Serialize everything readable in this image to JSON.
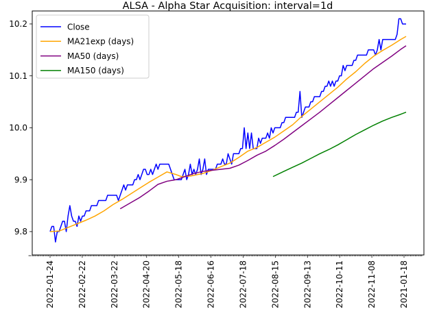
{
  "chart_data": {
    "type": "line",
    "title": "ALSA - Alpha Star Acquisition: interval=1d",
    "xlabel": "",
    "ylabel": "",
    "x_tick_labels": [
      "2022-01-24",
      "2022-02-22",
      "2022-03-22",
      "2022-04-20",
      "2022-05-18",
      "2022-06-16",
      "2022-07-18",
      "2022-08-15",
      "2022-09-13",
      "2022-10-11",
      "2022-11-08",
      "2021-01-18"
    ],
    "y_ticks": [
      9.8,
      9.9,
      10.0,
      10.1,
      10.2
    ],
    "y_tick_labels": [
      "9.8",
      "9.9",
      "10.0",
      "10.1",
      "10.2"
    ],
    "ylim": [
      9.755,
      10.225
    ],
    "grid": false,
    "legend_position": "upper left",
    "series": [
      {
        "name": "Close",
        "color": "#0000ff",
        "points": [
          [
            0,
            9.8
          ],
          [
            1,
            9.81
          ],
          [
            2,
            9.81
          ],
          [
            3,
            9.78
          ],
          [
            4,
            9.8
          ],
          [
            5,
            9.8
          ],
          [
            6,
            9.81
          ],
          [
            7,
            9.82
          ],
          [
            8,
            9.82
          ],
          [
            9,
            9.8
          ],
          [
            10,
            9.83
          ],
          [
            11,
            9.85
          ],
          [
            12,
            9.83
          ],
          [
            13,
            9.82
          ],
          [
            14,
            9.82
          ],
          [
            15,
            9.81
          ],
          [
            16,
            9.83
          ],
          [
            17,
            9.82
          ],
          [
            18,
            9.83
          ],
          [
            19,
            9.83
          ],
          [
            20,
            9.84
          ],
          [
            21,
            9.84
          ],
          [
            22,
            9.84
          ],
          [
            23,
            9.85
          ],
          [
            24,
            9.85
          ],
          [
            25,
            9.85
          ],
          [
            26,
            9.85
          ],
          [
            27,
            9.86
          ],
          [
            28,
            9.86
          ],
          [
            29,
            9.86
          ],
          [
            30,
            9.86
          ],
          [
            31,
            9.86
          ],
          [
            32,
            9.87
          ],
          [
            33,
            9.87
          ],
          [
            34,
            9.87
          ],
          [
            35,
            9.87
          ],
          [
            36,
            9.87
          ],
          [
            37,
            9.87
          ],
          [
            38,
            9.86
          ],
          [
            39,
            9.87
          ],
          [
            40,
            9.88
          ],
          [
            41,
            9.89
          ],
          [
            42,
            9.88
          ],
          [
            43,
            9.89
          ],
          [
            44,
            9.89
          ],
          [
            45,
            9.89
          ],
          [
            46,
            9.89
          ],
          [
            47,
            9.9
          ],
          [
            48,
            9.9
          ],
          [
            49,
            9.91
          ],
          [
            50,
            9.9
          ],
          [
            51,
            9.91
          ],
          [
            52,
            9.92
          ],
          [
            53,
            9.92
          ],
          [
            54,
            9.91
          ],
          [
            55,
            9.91
          ],
          [
            56,
            9.92
          ],
          [
            57,
            9.91
          ],
          [
            58,
            9.92
          ],
          [
            59,
            9.93
          ],
          [
            60,
            9.92
          ],
          [
            61,
            9.93
          ],
          [
            62,
            9.93
          ],
          [
            63,
            9.93
          ],
          [
            64,
            9.93
          ],
          [
            65,
            9.93
          ],
          [
            66,
            9.93
          ],
          [
            67,
            9.92
          ],
          [
            68,
            9.91
          ],
          [
            69,
            9.9
          ],
          [
            70,
            9.9
          ],
          [
            71,
            9.9
          ],
          [
            72,
            9.9
          ],
          [
            73,
            9.9
          ],
          [
            74,
            9.91
          ],
          [
            75,
            9.92
          ],
          [
            76,
            9.9
          ],
          [
            77,
            9.91
          ],
          [
            78,
            9.93
          ],
          [
            79,
            9.91
          ],
          [
            80,
            9.92
          ],
          [
            81,
            9.91
          ],
          [
            82,
            9.92
          ],
          [
            83,
            9.94
          ],
          [
            84,
            9.91
          ],
          [
            85,
            9.92
          ],
          [
            86,
            9.94
          ],
          [
            87,
            9.91
          ],
          [
            88,
            9.92
          ],
          [
            89,
            9.92
          ],
          [
            90,
            9.92
          ],
          [
            91,
            9.92
          ],
          [
            92,
            9.92
          ],
          [
            93,
            9.93
          ],
          [
            94,
            9.93
          ],
          [
            95,
            9.93
          ],
          [
            96,
            9.94
          ],
          [
            97,
            9.93
          ],
          [
            98,
            9.93
          ],
          [
            99,
            9.95
          ],
          [
            100,
            9.94
          ],
          [
            101,
            9.93
          ],
          [
            102,
            9.95
          ],
          [
            103,
            9.95
          ],
          [
            104,
            9.95
          ],
          [
            105,
            9.95
          ],
          [
            106,
            9.96
          ],
          [
            107,
            9.96
          ],
          [
            108,
            10.0
          ],
          [
            109,
            9.96
          ],
          [
            110,
            9.99
          ],
          [
            111,
            9.96
          ],
          [
            112,
            9.99
          ],
          [
            113,
            9.96
          ],
          [
            114,
            9.96
          ],
          [
            115,
            9.96
          ],
          [
            116,
            9.98
          ],
          [
            117,
            9.97
          ],
          [
            118,
            9.98
          ],
          [
            119,
            9.98
          ],
          [
            120,
            9.98
          ],
          [
            121,
            9.99
          ],
          [
            122,
            9.98
          ],
          [
            123,
            10.0
          ],
          [
            124,
            9.99
          ],
          [
            125,
            10.0
          ],
          [
            126,
            10.0
          ],
          [
            127,
            10.0
          ],
          [
            128,
            10.0
          ],
          [
            129,
            10.01
          ],
          [
            130,
            10.01
          ],
          [
            131,
            10.02
          ],
          [
            132,
            10.02
          ],
          [
            133,
            10.02
          ],
          [
            134,
            10.02
          ],
          [
            135,
            10.02
          ],
          [
            136,
            10.02
          ],
          [
            137,
            10.03
          ],
          [
            138,
            10.03
          ],
          [
            139,
            10.07
          ],
          [
            140,
            10.02
          ],
          [
            141,
            10.03
          ],
          [
            142,
            10.04
          ],
          [
            143,
            10.04
          ],
          [
            144,
            10.04
          ],
          [
            145,
            10.05
          ],
          [
            146,
            10.05
          ],
          [
            147,
            10.06
          ],
          [
            148,
            10.06
          ],
          [
            149,
            10.06
          ],
          [
            150,
            10.06
          ],
          [
            151,
            10.07
          ],
          [
            152,
            10.07
          ],
          [
            153,
            10.08
          ],
          [
            154,
            10.08
          ],
          [
            155,
            10.09
          ],
          [
            156,
            10.08
          ],
          [
            157,
            10.09
          ],
          [
            158,
            10.08
          ],
          [
            159,
            10.09
          ],
          [
            160,
            10.09
          ],
          [
            161,
            10.1
          ],
          [
            162,
            10.1
          ],
          [
            163,
            10.12
          ],
          [
            164,
            10.11
          ],
          [
            165,
            10.12
          ],
          [
            166,
            10.12
          ],
          [
            167,
            10.12
          ],
          [
            168,
            10.12
          ],
          [
            169,
            10.13
          ],
          [
            170,
            10.13
          ],
          [
            171,
            10.14
          ],
          [
            172,
            10.14
          ],
          [
            173,
            10.14
          ],
          [
            174,
            10.14
          ],
          [
            175,
            10.14
          ],
          [
            176,
            10.14
          ],
          [
            177,
            10.15
          ],
          [
            178,
            10.15
          ],
          [
            179,
            10.15
          ],
          [
            180,
            10.15
          ],
          [
            181,
            10.14
          ],
          [
            182,
            10.15
          ],
          [
            183,
            10.17
          ],
          [
            184,
            10.15
          ],
          [
            185,
            10.17
          ],
          [
            186,
            10.17
          ],
          [
            187,
            10.17
          ],
          [
            188,
            10.17
          ],
          [
            189,
            10.17
          ],
          [
            190,
            10.17
          ],
          [
            191,
            10.17
          ],
          [
            192,
            10.17
          ],
          [
            193,
            10.18
          ],
          [
            194,
            10.21
          ],
          [
            195,
            10.21
          ],
          [
            196,
            10.2
          ],
          [
            197,
            10.2
          ],
          [
            198,
            10.2
          ]
        ]
      },
      {
        "name": "MA21exp (days)",
        "color": "#ffa500",
        "points": [
          [
            0,
            9.8
          ],
          [
            5,
            9.801
          ],
          [
            10,
            9.808
          ],
          [
            15,
            9.815
          ],
          [
            20,
            9.822
          ],
          [
            25,
            9.83
          ],
          [
            30,
            9.84
          ],
          [
            35,
            9.852
          ],
          [
            40,
            9.862
          ],
          [
            45,
            9.873
          ],
          [
            50,
            9.884
          ],
          [
            55,
            9.895
          ],
          [
            60,
            9.905
          ],
          [
            65,
            9.915
          ],
          [
            70,
            9.91
          ],
          [
            73,
            9.906
          ],
          [
            78,
            9.907
          ],
          [
            85,
            9.912
          ],
          [
            90,
            9.918
          ],
          [
            95,
            9.925
          ],
          [
            100,
            9.932
          ],
          [
            105,
            9.943
          ],
          [
            110,
            9.955
          ],
          [
            115,
            9.962
          ],
          [
            120,
            9.972
          ],
          [
            125,
            9.982
          ],
          [
            130,
            9.994
          ],
          [
            135,
            10.006
          ],
          [
            140,
            10.022
          ],
          [
            145,
            10.036
          ],
          [
            150,
            10.05
          ],
          [
            155,
            10.064
          ],
          [
            160,
            10.078
          ],
          [
            165,
            10.094
          ],
          [
            170,
            10.108
          ],
          [
            175,
            10.124
          ],
          [
            180,
            10.138
          ],
          [
            185,
            10.149
          ],
          [
            190,
            10.159
          ],
          [
            195,
            10.17
          ],
          [
            198,
            10.176
          ]
        ]
      },
      {
        "name": "MA50 (days)",
        "color": "#800080",
        "points": [
          [
            39,
            9.844
          ],
          [
            45,
            9.856
          ],
          [
            50,
            9.866
          ],
          [
            55,
            9.878
          ],
          [
            60,
            9.891
          ],
          [
            65,
            9.897
          ],
          [
            70,
            9.9
          ],
          [
            75,
            9.906
          ],
          [
            80,
            9.912
          ],
          [
            85,
            9.916
          ],
          [
            90,
            9.918
          ],
          [
            95,
            9.92
          ],
          [
            100,
            9.922
          ],
          [
            105,
            9.928
          ],
          [
            110,
            9.937
          ],
          [
            115,
            9.947
          ],
          [
            120,
            9.955
          ],
          [
            125,
            9.966
          ],
          [
            130,
            9.978
          ],
          [
            135,
            9.991
          ],
          [
            140,
            10.004
          ],
          [
            145,
            10.017
          ],
          [
            150,
            10.03
          ],
          [
            155,
            10.044
          ],
          [
            160,
            10.058
          ],
          [
            165,
            10.072
          ],
          [
            170,
            10.086
          ],
          [
            175,
            10.1
          ],
          [
            180,
            10.114
          ],
          [
            185,
            10.126
          ],
          [
            190,
            10.138
          ],
          [
            195,
            10.151
          ],
          [
            198,
            10.158
          ]
        ]
      },
      {
        "name": "MA150 (days)",
        "color": "#008000",
        "points": [
          [
            124,
            9.906
          ],
          [
            130,
            9.916
          ],
          [
            135,
            9.924
          ],
          [
            140,
            9.932
          ],
          [
            145,
            9.941
          ],
          [
            150,
            9.95
          ],
          [
            155,
            9.958
          ],
          [
            160,
            9.967
          ],
          [
            165,
            9.977
          ],
          [
            170,
            9.987
          ],
          [
            175,
            9.996
          ],
          [
            180,
            10.005
          ],
          [
            185,
            10.013
          ],
          [
            190,
            10.02
          ],
          [
            195,
            10.026
          ],
          [
            198,
            10.03
          ]
        ]
      }
    ]
  }
}
